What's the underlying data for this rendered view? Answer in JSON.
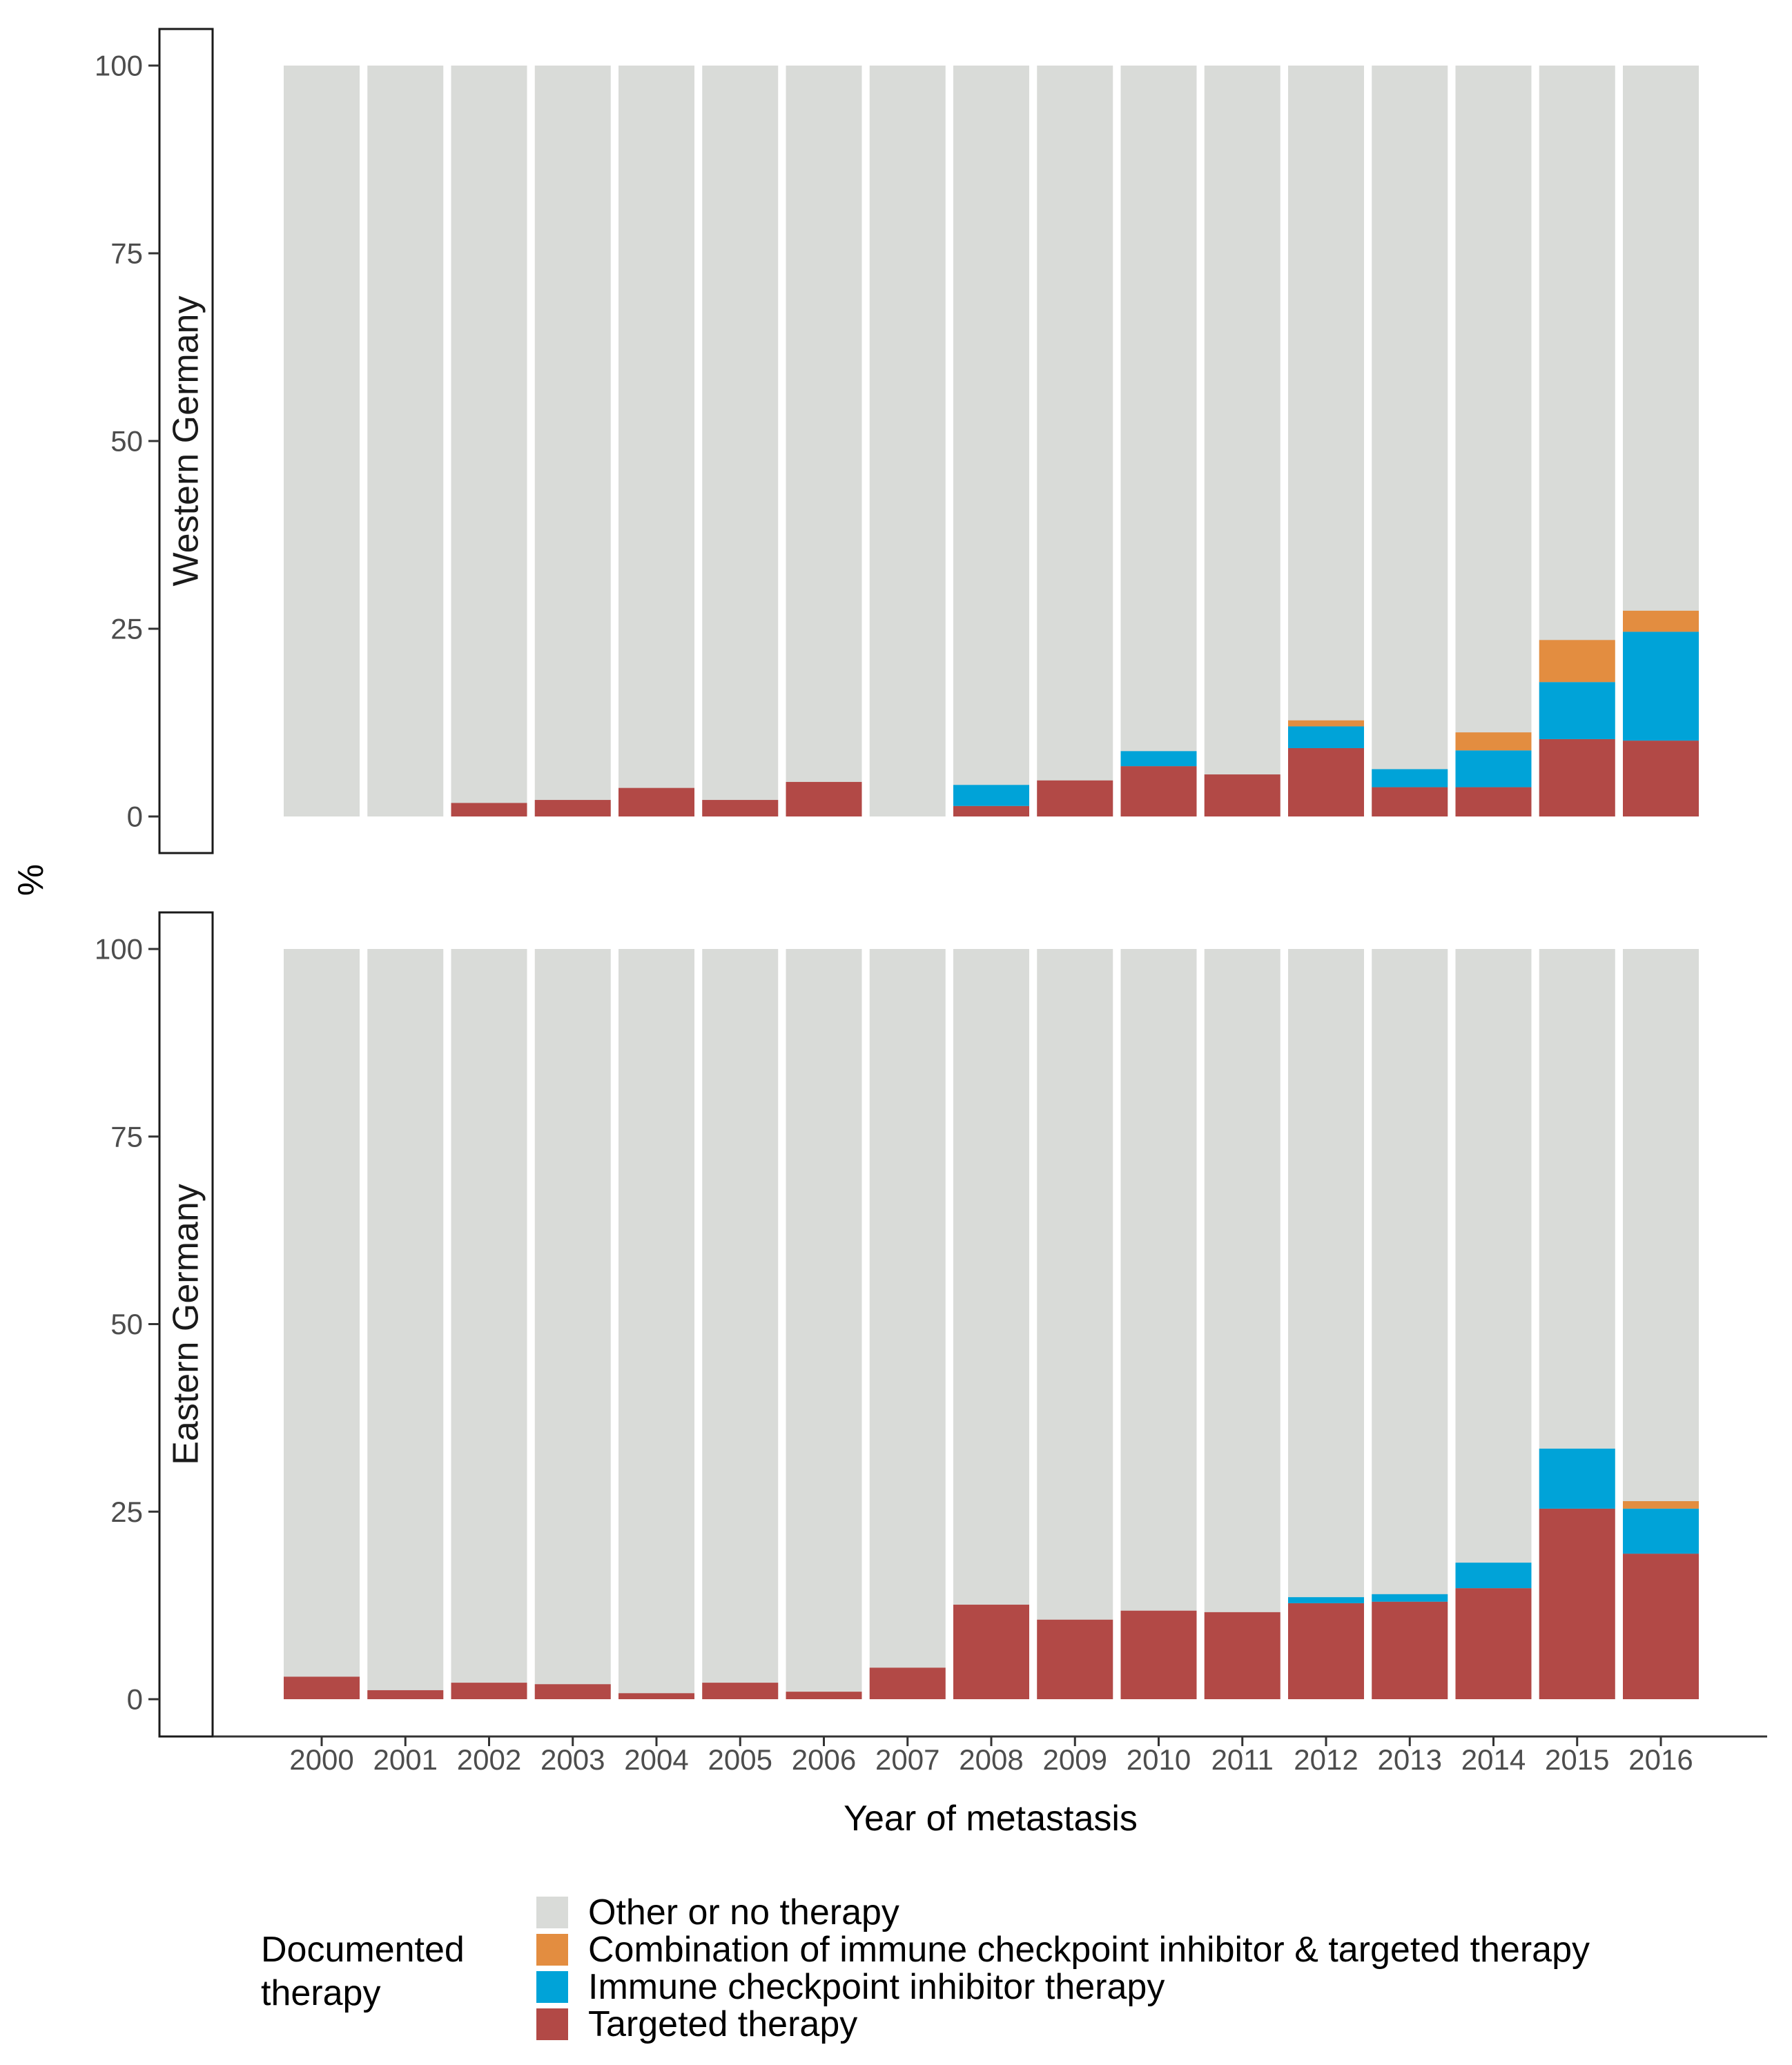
{
  "chart_data": {
    "type": "bar",
    "stacked": true,
    "xlabel": "Year of metastasis",
    "ylabel": "%",
    "ylim": [
      0,
      100
    ],
    "yticks": [
      "0",
      "25",
      "50",
      "75",
      "100"
    ],
    "categories": [
      "2000",
      "2001",
      "2002",
      "2003",
      "2004",
      "2005",
      "2006",
      "2007",
      "2008",
      "2009",
      "2010",
      "2011",
      "2012",
      "2013",
      "2014",
      "2015",
      "2016"
    ],
    "legend": {
      "title_lines": [
        "Documented",
        "therapy"
      ],
      "entries": [
        {
          "key": "other",
          "label": "Other or no therapy",
          "color": "#d9dbd8"
        },
        {
          "key": "combination",
          "label": "Combination of immune checkpoint inhibitor & targeted therapy",
          "color": "#e38d40"
        },
        {
          "key": "immune",
          "label": "Immune checkpoint inhibitor therapy",
          "color": "#00a3d8"
        },
        {
          "key": "targeted",
          "label": "Targeted therapy",
          "color": "#b24946"
        }
      ]
    },
    "panels": [
      {
        "label": "Western Germany",
        "series": {
          "targeted": [
            0,
            0,
            1.8,
            2.2,
            3.8,
            2.2,
            4.6,
            0,
            1.4,
            4.8,
            6.7,
            5.6,
            9.1,
            3.9,
            3.9,
            10.3,
            10.1
          ],
          "immune": [
            0,
            0,
            0,
            0,
            0,
            0,
            0,
            0,
            2.8,
            0,
            2.0,
            0,
            2.9,
            2.4,
            4.9,
            7.6,
            14.5
          ],
          "combination": [
            0,
            0,
            0,
            0,
            0,
            0,
            0,
            0,
            0,
            0,
            0,
            0,
            0.8,
            0,
            2.4,
            5.6,
            2.8
          ]
        }
      },
      {
        "label": "Eastern Germany",
        "series": {
          "targeted": [
            3.0,
            1.2,
            2.2,
            2.0,
            0.8,
            2.2,
            1.0,
            4.2,
            12.6,
            10.6,
            11.8,
            11.6,
            12.8,
            13.0,
            14.8,
            25.4,
            19.4
          ],
          "immune": [
            0,
            0,
            0,
            0,
            0,
            0,
            0,
            0,
            0,
            0,
            0,
            0,
            0.8,
            1.0,
            3.4,
            8.0,
            6.0
          ],
          "combination": [
            0,
            0,
            0,
            0,
            0,
            0,
            0,
            0,
            0,
            0,
            0,
            0,
            0,
            0,
            0,
            0,
            1.0
          ]
        }
      }
    ]
  }
}
